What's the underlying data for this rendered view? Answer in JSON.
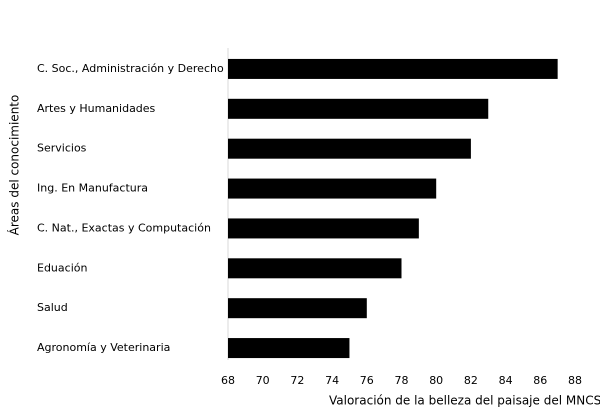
{
  "chart_data": {
    "type": "barh",
    "xlabel": "Valoración de la belleza del paisaje del MNCS",
    "ylabel": "Áreas del conocimiento",
    "categories": [
      "C. Soc., Administración y Derecho",
      "Artes y Humanidades",
      "Servicios",
      "Ing. En Manufactura",
      "C. Nat., Exactas y Computación",
      "Eduación",
      "Salud",
      "Agronomía y Veterinaria"
    ],
    "values": [
      87,
      83,
      82,
      80,
      79,
      78,
      76,
      75
    ],
    "color": "#000000",
    "xlim": [
      68,
      88
    ],
    "xticks": [
      68,
      70,
      72,
      74,
      76,
      78,
      80,
      82,
      84,
      86,
      88
    ]
  }
}
